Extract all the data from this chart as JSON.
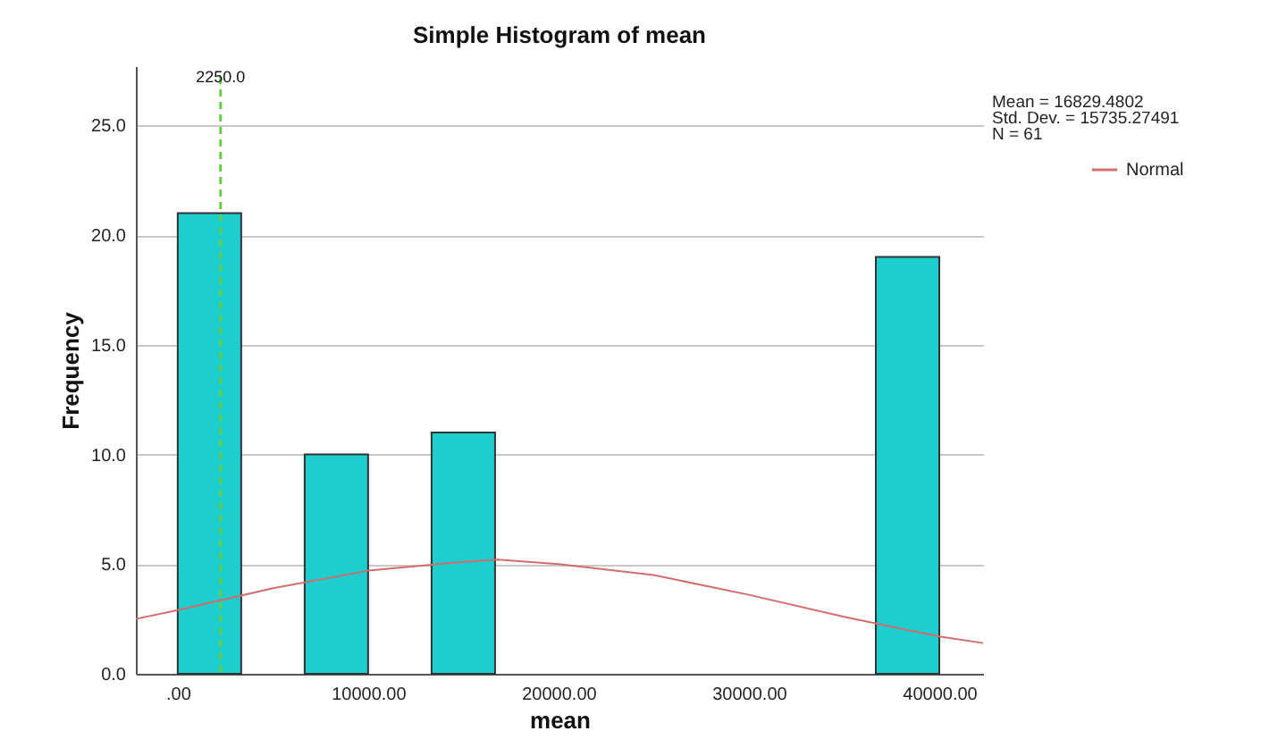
{
  "chart_data": {
    "type": "histogram",
    "title": "Simple Histogram of mean",
    "xlabel": "mean",
    "ylabel": "Frequency",
    "bins": [
      0,
      3333,
      6667,
      10000,
      13333,
      16667,
      20000,
      23333,
      26667,
      30000,
      33333,
      36667,
      40000
    ],
    "series": [
      {
        "color": "#1ccece",
        "values": [
          21,
          0,
          10,
          0,
          11,
          0,
          0,
          0,
          0,
          0,
          0,
          19
        ]
      },
      {
        "type": "line",
        "name": "Normal",
        "color": "#d36d6d",
        "x": [
          -2200,
          0,
          5000,
          10000,
          15000,
          16829,
          20000,
          25000,
          30000,
          35000,
          40000,
          42300
        ],
        "values": [
          2.5,
          2.9,
          3.9,
          4.7,
          5.1,
          5.2,
          5.0,
          4.5,
          3.6,
          2.6,
          1.7,
          1.4
        ]
      }
    ],
    "xlim": [
      -2200,
      42300
    ],
    "xticks": [
      {
        "value": 0,
        "label": ".00"
      },
      {
        "value": 10000,
        "label": "10000.00"
      },
      {
        "value": 20000,
        "label": "20000.00"
      },
      {
        "value": 30000,
        "label": "30000.00"
      },
      {
        "value": 40000,
        "label": "40000.00"
      }
    ],
    "ylim": [
      0,
      27.7
    ],
    "yticks": [
      {
        "value": 0,
        "label": "0.0"
      },
      {
        "value": 5,
        "label": "5.0"
      },
      {
        "value": 10,
        "label": "10.0"
      },
      {
        "value": 15,
        "label": "15.0"
      },
      {
        "value": 20,
        "label": "20.0"
      },
      {
        "value": 25,
        "label": "25.0"
      }
    ],
    "ref_lines": [
      {
        "axis": "x",
        "value": 2250,
        "label": "2250.0",
        "color": "#66cc44",
        "line_style": "dashed"
      }
    ],
    "annotations": [
      "Mean = 16829.4802",
      "Std. Dev. = 15735.27491",
      "N = 61"
    ],
    "grid": "y",
    "legend": "top right"
  }
}
